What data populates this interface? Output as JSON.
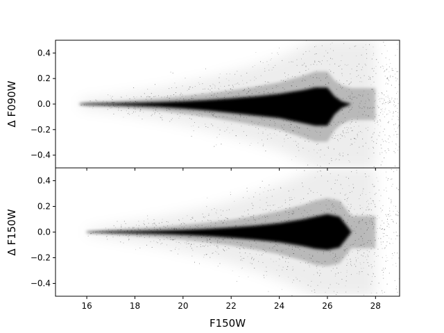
{
  "chart_data": [
    {
      "type": "scatter",
      "panel": "top",
      "ylabel": "Δ F090W",
      "xlabel": "",
      "xlim": [
        14.7,
        29.0
      ],
      "ylim": [
        -0.5,
        0.5
      ],
      "yticks": [
        0.4,
        0.2,
        0.0,
        -0.2,
        -0.4
      ],
      "ytick_labels": [
        "0.4",
        "0.2",
        "0.0",
        "−0.2",
        "−0.4"
      ],
      "xticks": [
        16,
        18,
        20,
        22,
        24,
        26,
        28
      ],
      "grid": false,
      "color": "#000000",
      "envelope": {
        "mag": [
          15.7,
          16,
          17,
          18,
          19,
          20,
          21,
          22,
          23,
          24,
          25,
          25.5,
          26,
          26.3,
          26.6,
          27.0,
          27.5,
          28.0
        ],
        "core_upper": [
          0.002,
          0.004,
          0.006,
          0.01,
          0.015,
          0.022,
          0.032,
          0.045,
          0.06,
          0.08,
          0.11,
          0.13,
          0.13,
          0.06,
          0.02,
          0.0,
          0.0,
          0.0
        ],
        "core_lower": [
          -0.002,
          -0.005,
          -0.008,
          -0.014,
          -0.022,
          -0.035,
          -0.05,
          -0.07,
          -0.09,
          -0.11,
          -0.15,
          -0.17,
          -0.17,
          -0.08,
          -0.03,
          0.0,
          0.0,
          0.0
        ],
        "halo_width": [
          0.02,
          0.04,
          0.06,
          0.09,
          0.12,
          0.16,
          0.2,
          0.25,
          0.3,
          0.36,
          0.45,
          0.5,
          0.5,
          0.5,
          0.5,
          0.5,
          0.5,
          0.5
        ]
      }
    },
    {
      "type": "scatter",
      "panel": "bottom",
      "ylabel": "Δ F150W",
      "xlabel": "F150W",
      "xlim": [
        14.7,
        29.0
      ],
      "ylim": [
        -0.5,
        0.5
      ],
      "yticks": [
        0.4,
        0.2,
        0.0,
        -0.2,
        -0.4
      ],
      "ytick_labels": [
        "0.4",
        "0.2",
        "0.0",
        "−0.2",
        "−0.4"
      ],
      "xticks": [
        16,
        18,
        20,
        22,
        24,
        26,
        28
      ],
      "xtick_labels": [
        "16",
        "18",
        "20",
        "22",
        "24",
        "26",
        "28"
      ],
      "grid": false,
      "color": "#000000",
      "envelope": {
        "mag": [
          16.0,
          16.5,
          17,
          18,
          19,
          20,
          21,
          22,
          23,
          24,
          25,
          25.5,
          26,
          26.5,
          26.8,
          27.0,
          27.5,
          28.0
        ],
        "core_upper": [
          0.002,
          0.004,
          0.006,
          0.008,
          0.012,
          0.018,
          0.026,
          0.036,
          0.05,
          0.07,
          0.1,
          0.12,
          0.14,
          0.12,
          0.05,
          0.0,
          0.0,
          0.0
        ],
        "core_lower": [
          -0.002,
          -0.004,
          -0.006,
          -0.01,
          -0.015,
          -0.022,
          -0.032,
          -0.045,
          -0.06,
          -0.08,
          -0.11,
          -0.13,
          -0.14,
          -0.12,
          -0.05,
          0.0,
          0.0,
          0.0
        ],
        "halo_width": [
          0.02,
          0.03,
          0.05,
          0.08,
          0.11,
          0.15,
          0.19,
          0.24,
          0.3,
          0.37,
          0.45,
          0.5,
          0.5,
          0.5,
          0.5,
          0.5,
          0.5,
          0.5
        ]
      }
    }
  ]
}
